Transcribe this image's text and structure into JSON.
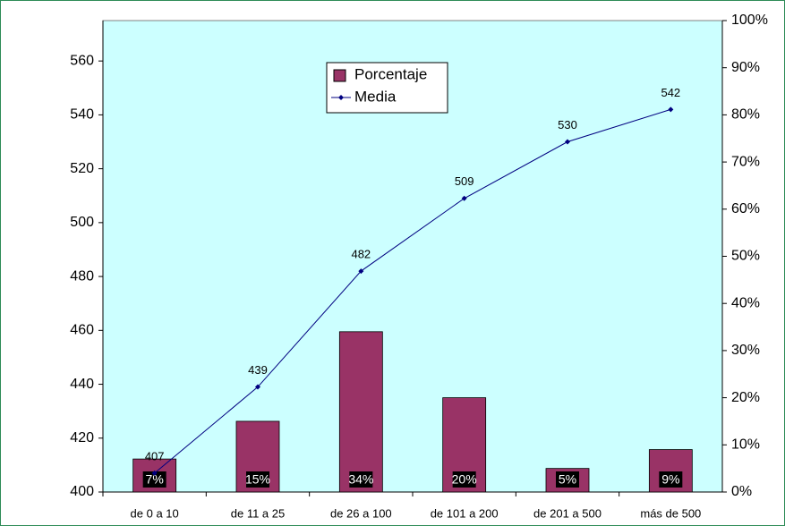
{
  "chart_data": {
    "type": "bar-line",
    "categories": [
      "de 0 a 10",
      "de 11 a 25",
      "de 26 a 100",
      "de 101 a 200",
      "de 201 a 500",
      "más de 500"
    ],
    "series": [
      {
        "name": "Porcentaje",
        "color": "#993366",
        "axis": "y2",
        "values": [
          7,
          15,
          34,
          20,
          5,
          9
        ],
        "value_labels": [
          "7%",
          "15%",
          "34%",
          "20%",
          "5%",
          "9%"
        ]
      },
      {
        "name": "Media",
        "color": "#000080",
        "axis": "y",
        "values": [
          407,
          439,
          482,
          509,
          530,
          542
        ]
      }
    ],
    "ylim": [
      400,
      575
    ],
    "yticks": [
      400,
      420,
      440,
      460,
      480,
      500,
      520,
      540,
      560
    ],
    "y2lim": [
      0,
      100
    ],
    "y2ticks": [
      {
        "value": 0,
        "label": "0%"
      },
      {
        "value": 10,
        "label": "10%"
      },
      {
        "value": 20,
        "label": "20%"
      },
      {
        "value": 30,
        "label": "30%"
      },
      {
        "value": 40,
        "label": "40%"
      },
      {
        "value": 50,
        "label": "50%"
      },
      {
        "value": 60,
        "label": "60%"
      },
      {
        "value": 70,
        "label": "70%"
      },
      {
        "value": 80,
        "label": "80%"
      },
      {
        "value": 90,
        "label": "90%"
      },
      {
        "value": 100,
        "label": "100%"
      }
    ],
    "legend": "top-center"
  }
}
